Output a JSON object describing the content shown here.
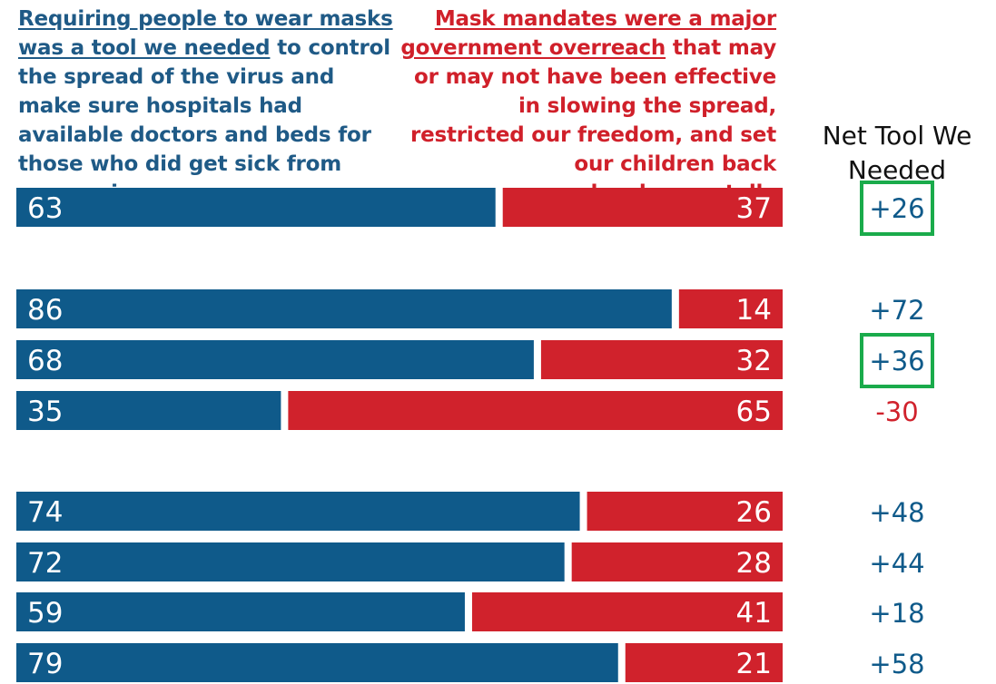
{
  "header": {
    "left_underlined": "Requiring people to wear masks was a tool we needed",
    "left_rest": " to control the spread of the virus and make sure hospitals had available doctors and beds for those who did get sick from coronavirus",
    "right_underlined": "Mask mandates were a major government overreach",
    "right_rest": " that may or may not have been effective in slowing the spread, restricted our freedom, and set our children back developmentally",
    "net_title": "Net Tool We Needed"
  },
  "colors": {
    "tool": "#0f5a8a",
    "overreach": "#d0222c",
    "highlight_box": "#1aab4b",
    "net_positive": "#0f5a8a",
    "net_negative": "#d0222c"
  },
  "chart_data": {
    "type": "bar",
    "orientation": "horizontal",
    "stacked": true,
    "groups": [
      [
        0
      ],
      [
        1,
        2,
        3
      ],
      [
        4,
        5,
        6,
        7
      ]
    ],
    "series": [
      {
        "name": "Requiring people to wear masks was a tool we needed",
        "values": [
          63,
          86,
          68,
          35,
          74,
          72,
          59,
          79
        ]
      },
      {
        "name": "Mask mandates were a major government overreach",
        "values": [
          37,
          14,
          32,
          65,
          26,
          28,
          41,
          21
        ]
      }
    ],
    "net": [
      "+26",
      "+72",
      "+36",
      "-30",
      "+48",
      "+44",
      "+18",
      "+58"
    ],
    "highlighted_rows": [
      0,
      2
    ],
    "xlim": [
      0,
      100
    ]
  }
}
